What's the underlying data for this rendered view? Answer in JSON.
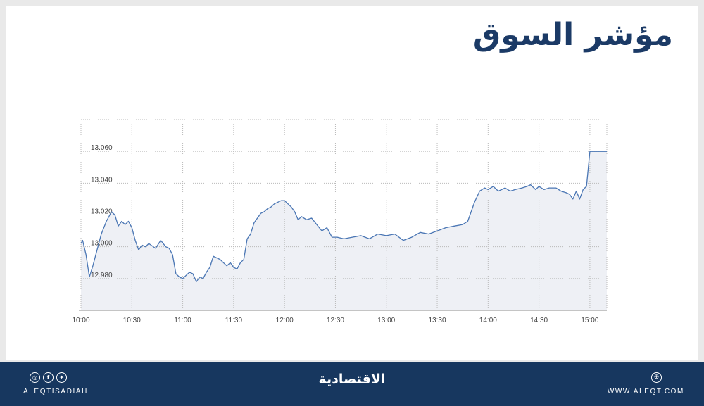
{
  "header": {
    "title": "مؤشر السوق"
  },
  "footer": {
    "social_icons": [
      {
        "name": "instagram-icon",
        "glyph": "◎"
      },
      {
        "name": "facebook-icon",
        "glyph": "f"
      },
      {
        "name": "twitter-icon",
        "glyph": "✦"
      }
    ],
    "handle": "ALEQTISADIAH",
    "logo": "الاقتصادية",
    "globe_icon": "globe-icon",
    "website": "WWW.ALEQT.COM"
  },
  "colors": {
    "line": "#4a76b4",
    "area": "#eef0f5",
    "brand": "#17375f",
    "title": "#1b3a66"
  },
  "chart_data": {
    "type": "area",
    "title": "",
    "xlabel": "",
    "ylabel": "",
    "x_ticks": [
      "10:00",
      "10:30",
      "11:00",
      "11:30",
      "12:00",
      "12:30",
      "13:00",
      "13:30",
      "14:00",
      "14:30",
      "15:00"
    ],
    "y_ticks": [
      "12.980",
      "13.000",
      "13.020",
      "13.040",
      "13.060"
    ],
    "y_tick_values": [
      12980,
      13000,
      13020,
      13040,
      13060
    ],
    "ylim": [
      12960,
      13080
    ],
    "xlim_minutes": [
      0,
      310
    ],
    "grid": true,
    "series": [
      {
        "x_minutes": [
          0,
          1,
          3,
          5,
          7,
          9,
          12,
          15,
          18,
          20,
          22,
          24,
          26,
          28,
          30,
          32,
          34,
          36,
          38,
          40,
          44,
          47,
          50,
          52,
          54,
          56,
          58,
          60,
          62,
          64,
          66,
          68,
          70,
          72,
          74,
          76,
          78,
          80,
          82,
          84,
          86,
          88,
          90,
          92,
          94,
          96,
          98,
          100,
          102,
          104,
          106,
          108,
          110,
          112,
          114,
          116,
          118,
          120,
          122,
          124,
          126,
          128,
          130,
          133,
          136,
          139,
          142,
          145,
          148,
          151,
          155,
          160,
          165,
          170,
          175,
          180,
          185,
          190,
          195,
          200,
          205,
          210,
          215,
          220,
          225,
          228,
          230,
          232,
          235,
          238,
          240,
          243,
          246,
          250,
          253,
          256,
          260,
          263,
          265,
          268,
          270,
          273,
          276,
          280,
          283,
          286,
          288,
          290,
          292,
          294,
          296,
          298,
          300,
          302,
          304,
          306,
          310
        ],
        "values": [
          13002,
          13004,
          12995,
          12981,
          12988,
          12996,
          13008,
          13016,
          13022,
          13020,
          13013,
          13016,
          13014,
          13016,
          13012,
          13004,
          12998,
          13001,
          13000,
          13002,
          12999,
          13004,
          13000,
          12999,
          12995,
          12983,
          12981,
          12980,
          12982,
          12984,
          12983,
          12978,
          12981,
          12980,
          12984,
          12987,
          12994,
          12993,
          12992,
          12990,
          12988,
          12990,
          12987,
          12986,
          12990,
          12992,
          13005,
          13008,
          13015,
          13018,
          13021,
          13022,
          13024,
          13025,
          13027,
          13028,
          13029,
          13029,
          13027,
          13025,
          13022,
          13017,
          13019,
          13017,
          13018,
          13014,
          13010,
          13012,
          13006,
          13006,
          13005,
          13006,
          13007,
          13005,
          13008,
          13007,
          13008,
          13004,
          13006,
          13009,
          13008,
          13010,
          13012,
          13013,
          13014,
          13016,
          13022,
          13028,
          13035,
          13037,
          13036,
          13038,
          13035,
          13037,
          13035,
          13036,
          13037,
          13038,
          13039,
          13036,
          13038,
          13036,
          13037,
          13037,
          13035,
          13034,
          13033,
          13030,
          13035,
          13030,
          13036,
          13038,
          13060,
          13060,
          13060,
          13060,
          13060
        ]
      }
    ]
  }
}
